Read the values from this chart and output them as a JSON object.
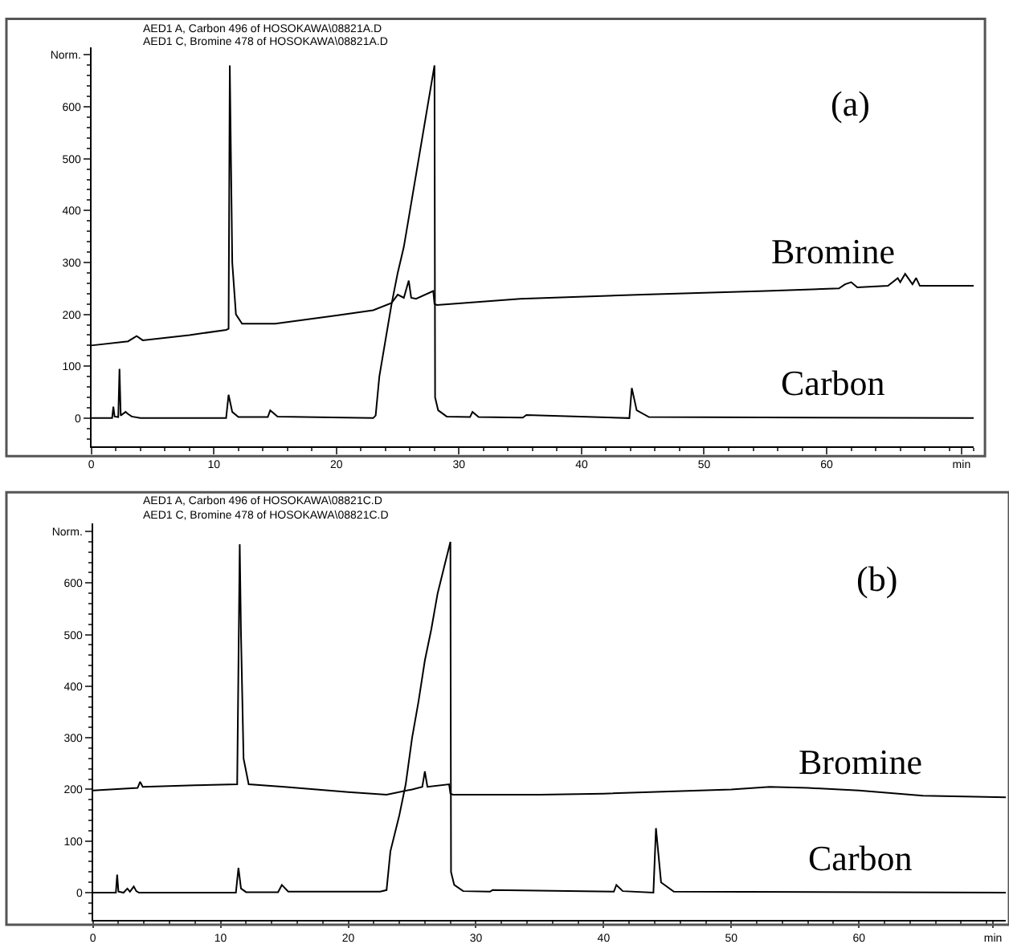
{
  "chart_data": [
    {
      "type": "line",
      "annotations": [
        "AED1 A, Carbon 496 of HOSOKAWA\\08821A.D",
        "AED1 C, Bromine 478 of HOSOKAWA\\08821A.D",
        "(a)"
      ],
      "xlim": [
        0,
        72
      ],
      "xticks": [
        0,
        10,
        20,
        30,
        40,
        50,
        60,
        {
          "value": 71,
          "label": "min"
        }
      ],
      "ylim": [
        -55,
        715
      ],
      "yticks": [
        0,
        100,
        200,
        300,
        400,
        500,
        600,
        {
          "value": 700,
          "label": "Norm."
        }
      ],
      "series": [
        {
          "name": "Bromine",
          "color": "#000000",
          "x": [
            0,
            3,
            3.7,
            4.2,
            8,
            11,
            11.2,
            11.3,
            11.5,
            11.8,
            12.3,
            15,
            20,
            23,
            24.5,
            25,
            25.5,
            25.9,
            26.1,
            26.5,
            27.9,
            28.0,
            28.2,
            35,
            45,
            55,
            61,
            61.5,
            62,
            62.5,
            65,
            65.8,
            66,
            66.4,
            67,
            67.3,
            67.6,
            72
          ],
          "values": [
            140,
            148,
            158,
            150,
            160,
            170,
            172,
            680,
            300,
            200,
            182,
            182,
            198,
            208,
            222,
            238,
            232,
            265,
            232,
            230,
            245,
            220,
            218,
            230,
            238,
            245,
            250,
            258,
            262,
            252,
            255,
            270,
            262,
            278,
            258,
            270,
            255,
            255
          ]
        },
        {
          "name": "Carbon",
          "color": "#000000",
          "x": [
            0,
            1.7,
            1.8,
            1.9,
            2.2,
            2.3,
            2.4,
            2.8,
            3.0,
            3.3,
            4,
            11.0,
            11.2,
            11.5,
            12,
            14.4,
            14.6,
            15.2,
            23.0,
            23.2,
            23.5,
            24,
            24.5,
            25,
            25.5,
            26,
            26.5,
            27,
            27.5,
            28.0,
            28.05,
            28.3,
            29,
            30.9,
            31.1,
            31.6,
            35.2,
            35.5,
            43.9,
            44.1,
            44.5,
            45.5,
            72
          ],
          "values": [
            0,
            0,
            22,
            3,
            2,
            95,
            5,
            12,
            8,
            3,
            0,
            0,
            45,
            12,
            2,
            2,
            15,
            3,
            0,
            5,
            80,
            150,
            220,
            280,
            330,
            400,
            470,
            540,
            610,
            680,
            40,
            15,
            3,
            2,
            12,
            2,
            1,
            6,
            0,
            58,
            15,
            2,
            0
          ]
        }
      ]
    },
    {
      "type": "line",
      "annotations": [
        "AED1 A, Carbon 496 of HOSOKAWA\\08821C.D",
        "AED1 C, Bromine 478 of HOSOKAWA\\08821C.D",
        "(b)"
      ],
      "xlim": [
        0,
        71.5
      ],
      "xticks": [
        0,
        10,
        20,
        30,
        40,
        50,
        60,
        {
          "value": 70.5,
          "label": "min"
        }
      ],
      "ylim": [
        -53,
        715
      ],
      "yticks": [
        0,
        100,
        200,
        300,
        400,
        500,
        600,
        {
          "value": 700,
          "label": "Norm."
        }
      ],
      "series": [
        {
          "name": "Bromine",
          "color": "#000000",
          "x": [
            0,
            3.5,
            3.7,
            3.9,
            8,
            11.3,
            11.5,
            11.6,
            11.8,
            12.2,
            15,
            20,
            23,
            25,
            25.8,
            26,
            26.2,
            27.9,
            28.0,
            28.2,
            35,
            40,
            50,
            53,
            56,
            60,
            65,
            71.5
          ],
          "values": [
            198,
            203,
            215,
            205,
            208,
            210,
            675,
            500,
            260,
            210,
            205,
            195,
            190,
            200,
            205,
            235,
            205,
            210,
            192,
            190,
            190,
            192,
            200,
            205,
            203,
            198,
            188,
            185
          ]
        },
        {
          "name": "Carbon",
          "color": "#000000",
          "x": [
            0,
            1.8,
            1.9,
            2.0,
            2.4,
            2.7,
            2.9,
            3.2,
            3.4,
            3.6,
            4,
            11.2,
            11.4,
            11.6,
            12,
            14.5,
            14.8,
            15.3,
            22.5,
            23.0,
            23.3,
            24,
            24.5,
            25,
            25.5,
            26,
            26.5,
            27,
            27.5,
            28.0,
            28.05,
            28.3,
            29,
            31.1,
            31.3,
            40.8,
            41.0,
            41.5,
            43.9,
            44.1,
            44.5,
            45.5,
            71.5
          ],
          "values": [
            0,
            0,
            35,
            2,
            0,
            8,
            2,
            12,
            3,
            0,
            0,
            0,
            48,
            8,
            1,
            1,
            15,
            2,
            2,
            5,
            80,
            150,
            210,
            300,
            370,
            450,
            510,
            580,
            630,
            680,
            40,
            15,
            3,
            2,
            5,
            2,
            15,
            3,
            0,
            125,
            20,
            2,
            0
          ]
        }
      ]
    }
  ]
}
